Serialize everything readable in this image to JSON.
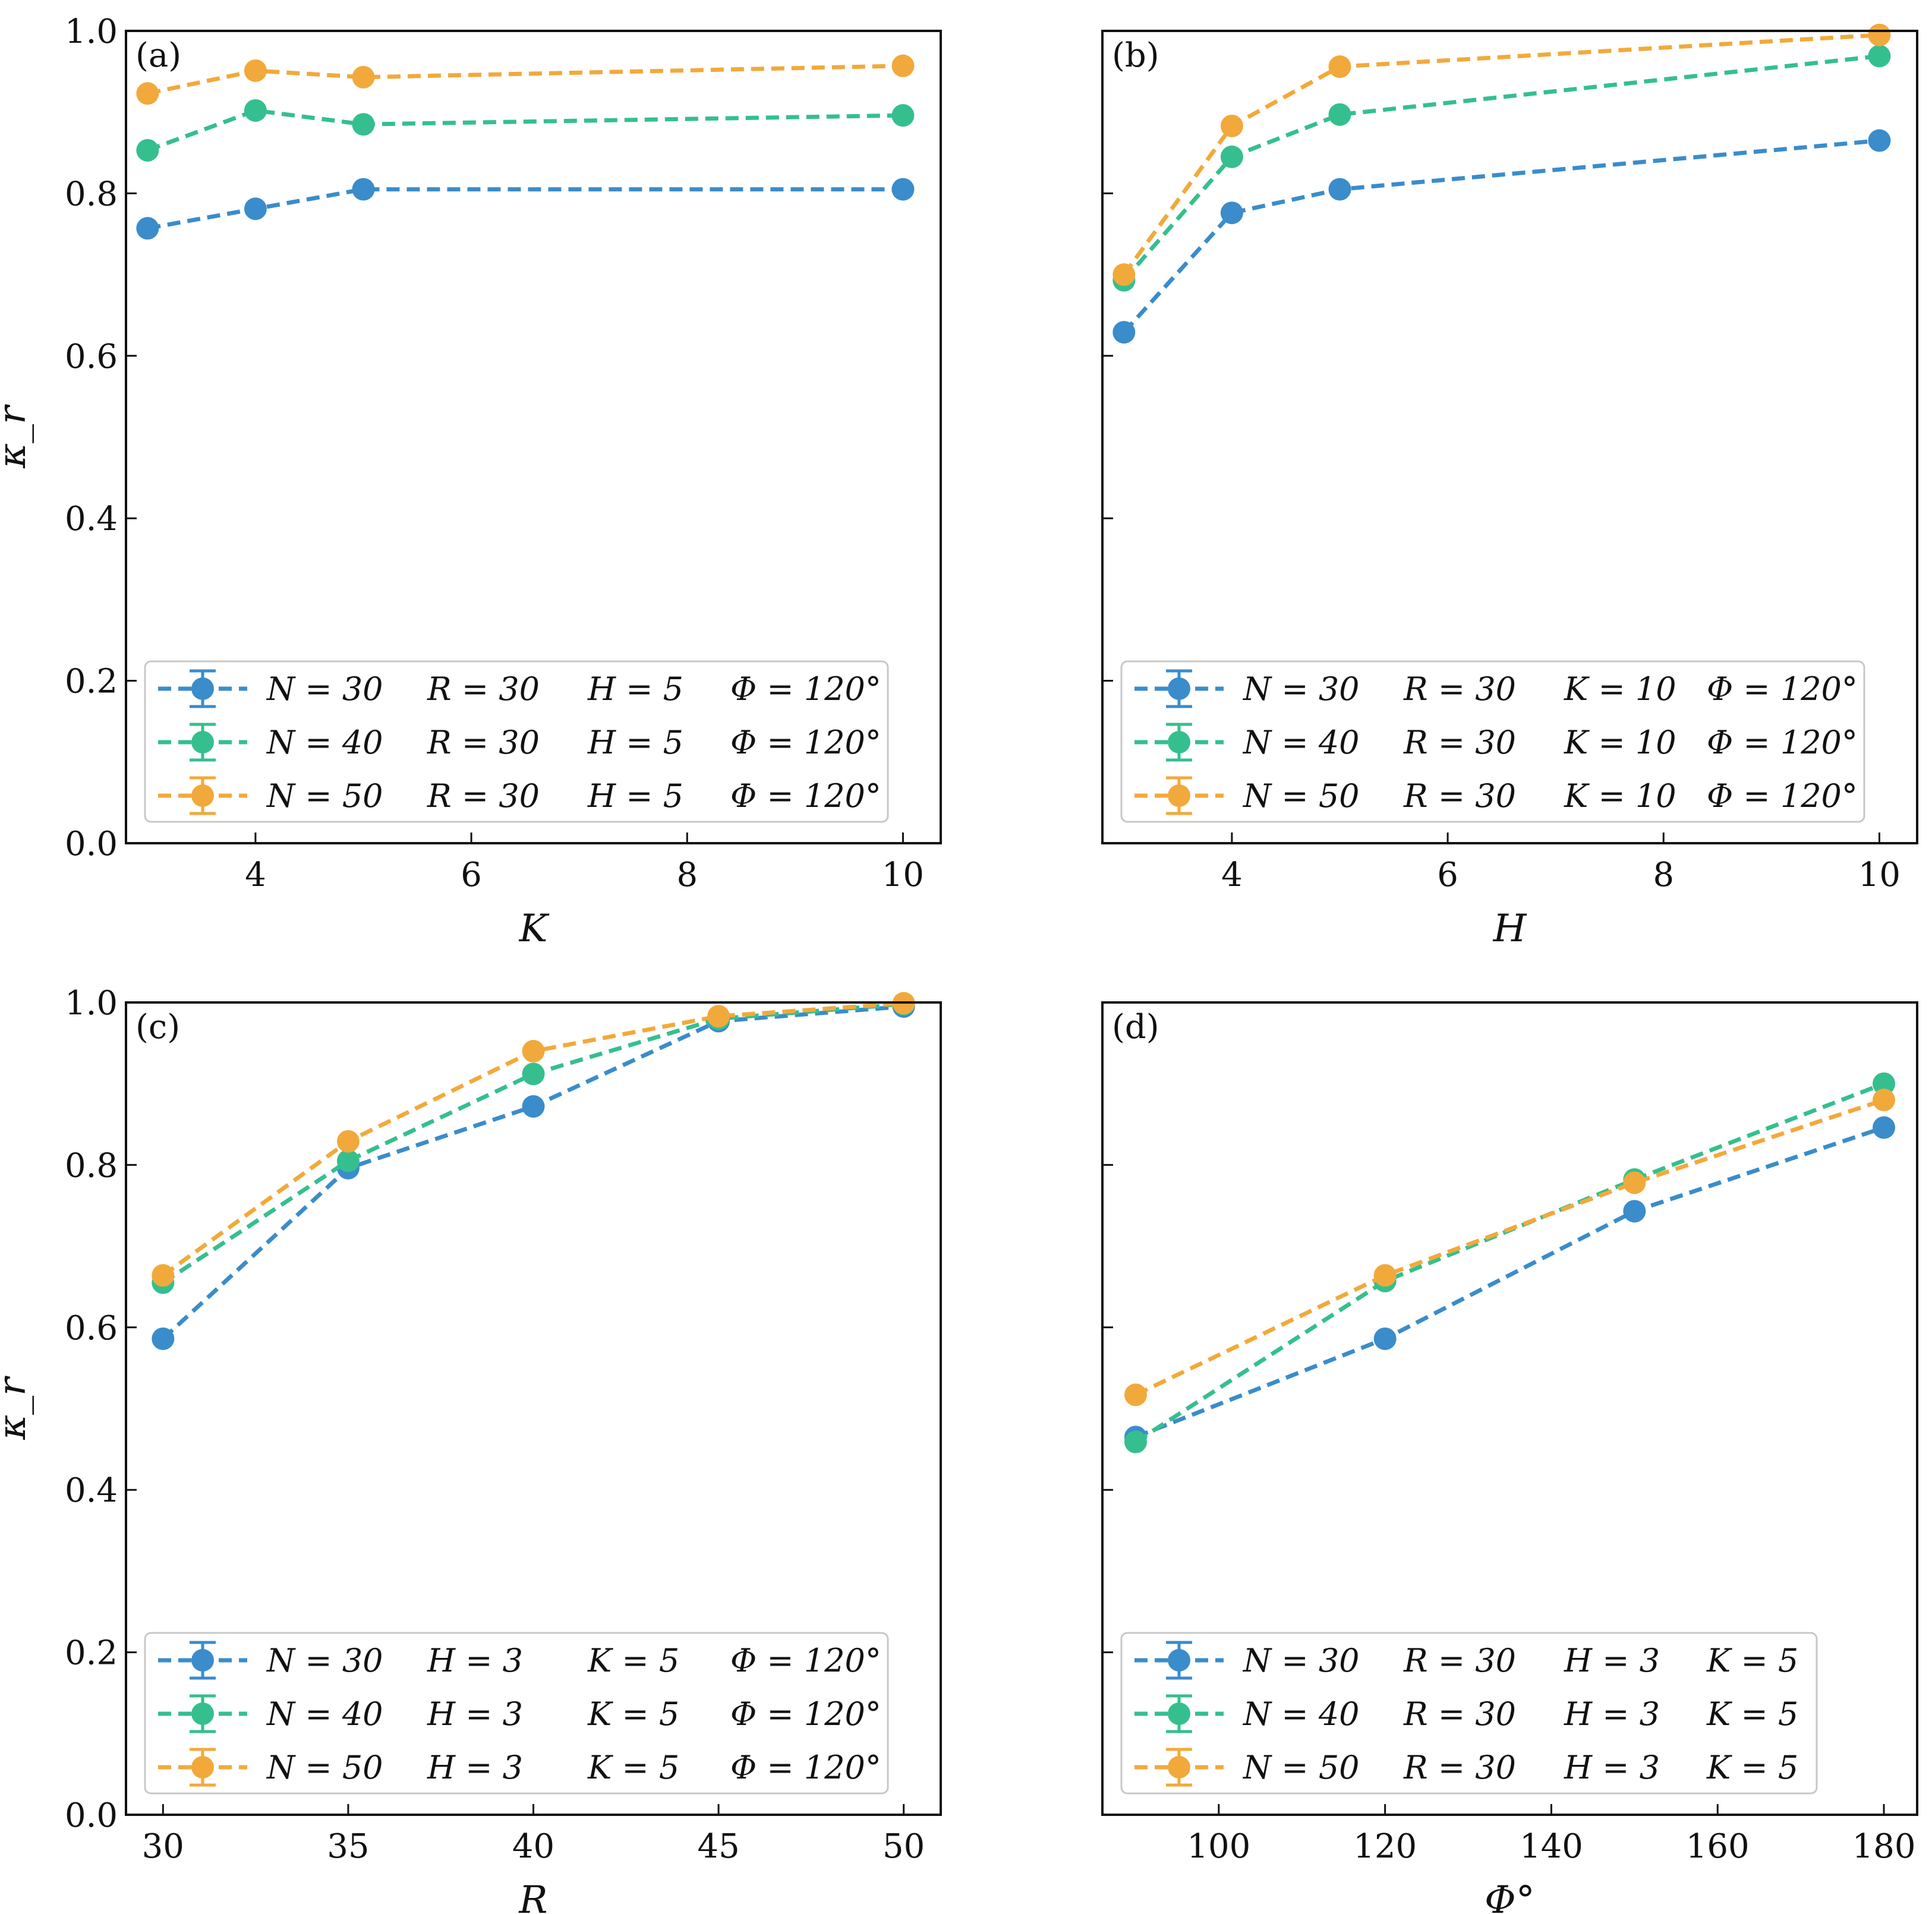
{
  "colors": {
    "blue": "#3a8ccb",
    "green": "#35bf8e",
    "orange": "#f2a93b"
  },
  "chart_data": [
    {
      "type": "line",
      "panel": "(a)",
      "xlabel": "K",
      "ylabel": "κ_r",
      "xlim": [
        2.8,
        10.35
      ],
      "ylim": [
        0.0,
        1.0
      ],
      "xticks": [
        4,
        6,
        8,
        10
      ],
      "yticks": [
        0.0,
        0.2,
        0.4,
        0.6,
        0.8,
        1.0
      ],
      "show_yticklabels": true,
      "legend_position": "lower-left",
      "x": [
        3,
        4,
        5,
        10
      ],
      "series": [
        {
          "name": "N = 30",
          "color_key": "blue",
          "values": [
            0.757,
            0.781,
            0.805,
            0.805
          ],
          "legend_fields": [
            "N = 30",
            "R = 30",
            "H = 5",
            "Φ = 120°"
          ]
        },
        {
          "name": "N = 40",
          "color_key": "green",
          "values": [
            0.853,
            0.902,
            0.885,
            0.896
          ],
          "legend_fields": [
            "N = 40",
            "R = 30",
            "H = 5",
            "Φ = 120°"
          ]
        },
        {
          "name": "N = 50",
          "color_key": "orange",
          "values": [
            0.923,
            0.951,
            0.943,
            0.957
          ],
          "legend_fields": [
            "N = 50",
            "R = 30",
            "H = 5",
            "Φ = 120°"
          ]
        }
      ]
    },
    {
      "type": "line",
      "panel": "(b)",
      "xlabel": "H",
      "ylabel": "",
      "xlim": [
        2.8,
        10.35
      ],
      "ylim": [
        0.0,
        1.0
      ],
      "xticks": [
        4,
        6,
        8,
        10
      ],
      "yticks": [
        0.0,
        0.2,
        0.4,
        0.6,
        0.8,
        1.0
      ],
      "show_yticklabels": false,
      "legend_position": "lower-left",
      "x": [
        3,
        4,
        5,
        10
      ],
      "series": [
        {
          "name": "N = 30",
          "color_key": "blue",
          "values": [
            0.629,
            0.776,
            0.805,
            0.865
          ],
          "legend_fields": [
            "N = 30",
            "R = 30",
            "K = 10",
            "Φ = 120°"
          ]
        },
        {
          "name": "N = 40",
          "color_key": "green",
          "values": [
            0.693,
            0.845,
            0.897,
            0.969
          ],
          "legend_fields": [
            "N = 40",
            "R = 30",
            "K = 10",
            "Φ = 120°"
          ]
        },
        {
          "name": "N = 50",
          "color_key": "orange",
          "values": [
            0.7,
            0.883,
            0.956,
            0.995
          ],
          "legend_fields": [
            "N = 50",
            "R = 30",
            "K = 10",
            "Φ = 120°"
          ]
        }
      ]
    },
    {
      "type": "line",
      "panel": "(c)",
      "xlabel": "R",
      "ylabel": "κ_r",
      "xlim": [
        29.0,
        51.0
      ],
      "ylim": [
        0.0,
        1.0
      ],
      "xticks": [
        30,
        35,
        40,
        45,
        50
      ],
      "yticks": [
        0.0,
        0.2,
        0.4,
        0.6,
        0.8,
        1.0
      ],
      "show_yticklabels": true,
      "legend_position": "lower-left",
      "x": [
        30,
        35,
        40,
        45,
        50
      ],
      "series": [
        {
          "name": "N = 30",
          "color_key": "blue",
          "values": [
            0.586,
            0.796,
            0.872,
            0.977,
            0.995
          ],
          "legend_fields": [
            "N = 30",
            "H = 3",
            "K = 5",
            "Φ = 120°"
          ]
        },
        {
          "name": "N = 40",
          "color_key": "green",
          "values": [
            0.655,
            0.805,
            0.912,
            0.98,
            0.998
          ],
          "legend_fields": [
            "N = 40",
            "H = 3",
            "K = 5",
            "Φ = 120°"
          ]
        },
        {
          "name": "N = 50",
          "color_key": "orange",
          "values": [
            0.664,
            0.829,
            0.94,
            0.983,
            0.999
          ],
          "legend_fields": [
            "N = 50",
            "H = 3",
            "K = 5",
            "Φ = 120°"
          ]
        }
      ]
    },
    {
      "type": "line",
      "panel": "(d)",
      "xlabel": "Φ°",
      "ylabel": "",
      "xlim": [
        86.0,
        184.0
      ],
      "ylim": [
        0.0,
        1.0
      ],
      "xticks": [
        100,
        120,
        140,
        160,
        180
      ],
      "yticks": [
        0.0,
        0.2,
        0.4,
        0.6,
        0.8,
        1.0
      ],
      "show_yticklabels": false,
      "legend_position": "lower-left",
      "x": [
        90,
        120,
        150,
        180
      ],
      "series": [
        {
          "name": "N = 30",
          "color_key": "blue",
          "values": [
            0.465,
            0.586,
            0.743,
            0.846
          ],
          "legend_fields": [
            "N = 30",
            "R = 30",
            "H = 3",
            "K = 5"
          ]
        },
        {
          "name": "N = 40",
          "color_key": "green",
          "values": [
            0.459,
            0.657,
            0.782,
            0.9
          ],
          "legend_fields": [
            "N = 40",
            "R = 30",
            "H = 3",
            "K = 5"
          ]
        },
        {
          "name": "N = 50",
          "color_key": "orange",
          "values": [
            0.517,
            0.664,
            0.778,
            0.88
          ],
          "legend_fields": [
            "N = 50",
            "R = 30",
            "H = 3",
            "K = 5"
          ]
        }
      ]
    }
  ]
}
